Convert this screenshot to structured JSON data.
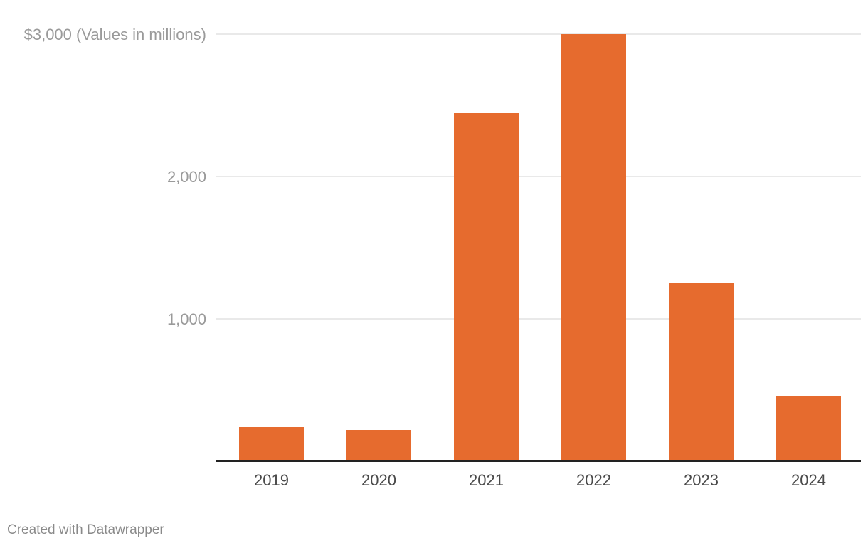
{
  "chart_data": {
    "type": "bar",
    "categories": [
      "2019",
      "2020",
      "2021",
      "2022",
      "2023",
      "2024"
    ],
    "values": [
      240,
      220,
      2445,
      3000,
      1250,
      460
    ],
    "ylim": [
      0,
      3000
    ],
    "yticks": [
      {
        "value": 1000,
        "label": "1,000"
      },
      {
        "value": 2000,
        "label": "2,000"
      },
      {
        "value": 3000,
        "label": "$3,000 (Values in millions)"
      }
    ],
    "bar_color": "#e66b2e",
    "grid": true,
    "legend": "none"
  },
  "footer": {
    "credit": "Created with Datawrapper"
  }
}
